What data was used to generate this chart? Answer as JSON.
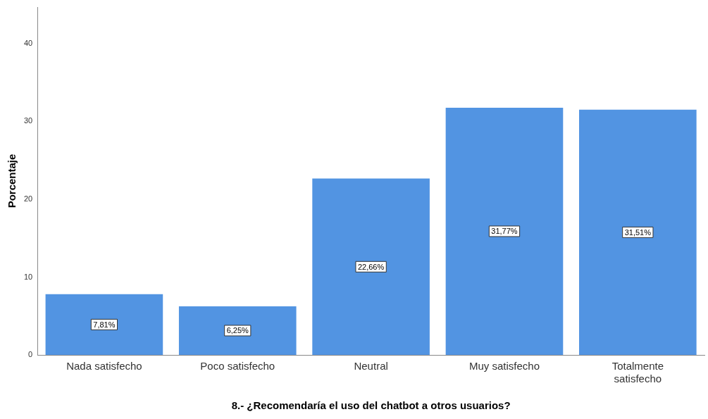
{
  "chart_data": {
    "type": "bar",
    "xlabel": "8.- ¿Recomendaría el uso del chatbot a otros usuarios?",
    "ylabel": "Porcentaje",
    "categories": [
      "Nada satisfecho",
      "Poco satisfecho",
      "Neutral",
      "Muy satisfecho",
      "Totalmente satisfecho"
    ],
    "values": [
      7.81,
      6.25,
      22.66,
      31.77,
      31.51
    ],
    "value_labels": [
      "7,81%",
      "6,25%",
      "22,66%",
      "31,77%",
      "31,51%"
    ],
    "color": "#5294e2",
    "ylim": [
      0,
      44.7
    ],
    "yticks": [
      0,
      10,
      20,
      30,
      40
    ],
    "grid": false,
    "legend": false
  }
}
